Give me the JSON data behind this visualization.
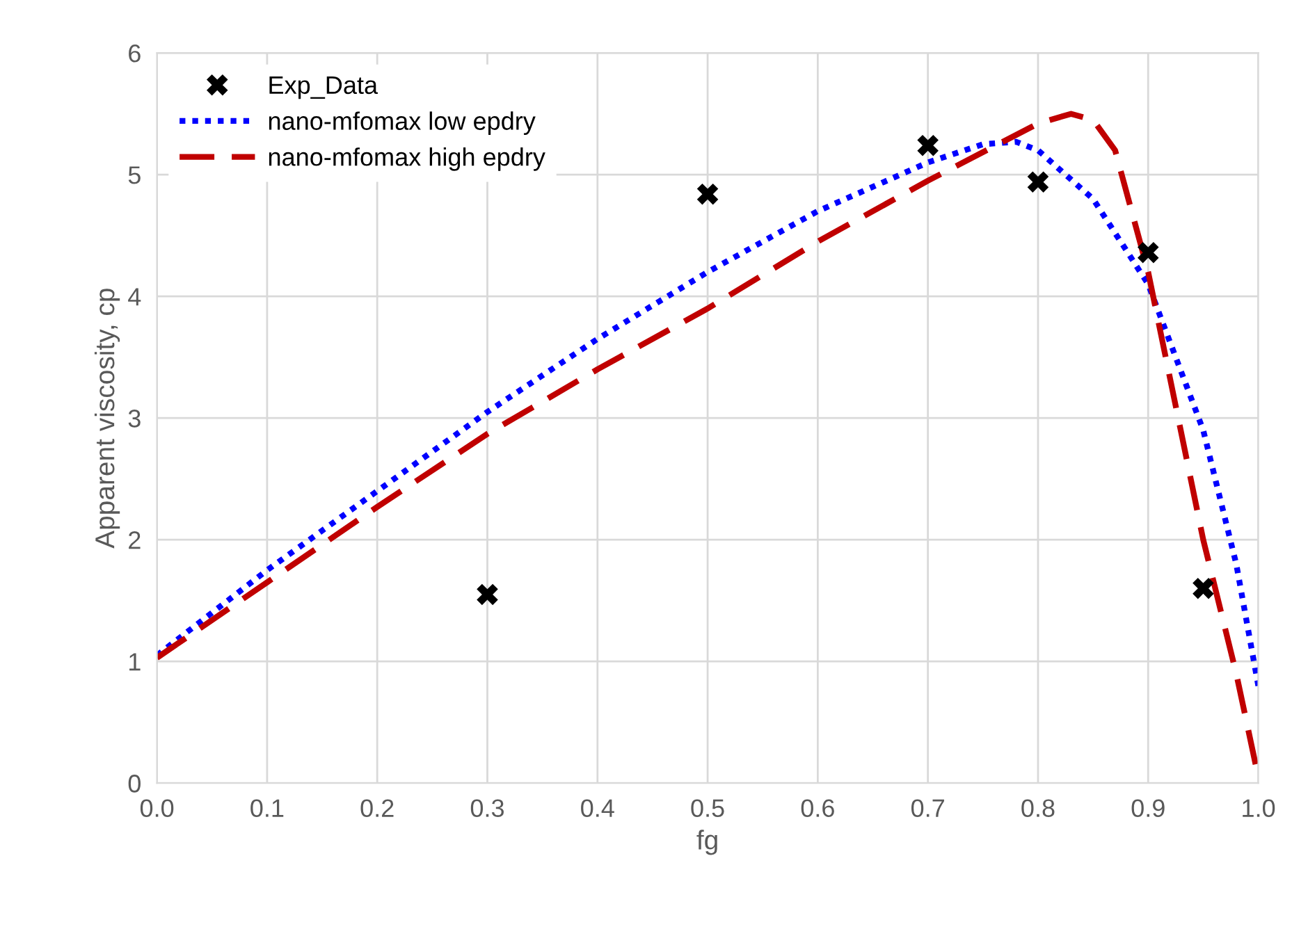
{
  "chart_data": {
    "type": "line",
    "xlabel": "fg",
    "ylabel": "Apparent viscosity, cp",
    "xlim": [
      0,
      1
    ],
    "ylim": [
      0,
      6
    ],
    "xticks": [
      {
        "value": 0,
        "label": "0.0"
      },
      0.1,
      0.2,
      0.3,
      0.4,
      0.5,
      0.6,
      0.7,
      0.8,
      0.9,
      {
        "value": 1,
        "label": "1.0"
      }
    ],
    "yticks": [
      0,
      1,
      2,
      3,
      4,
      5,
      6
    ],
    "grid": true,
    "legend": "top left",
    "series": [
      {
        "name": "Exp_Data",
        "type": "scatter",
        "marker": "cross",
        "color": "#000000",
        "x": [
          0.3,
          0.5,
          0.7,
          0.8,
          0.9,
          0.95
        ],
        "values": [
          1.55,
          4.84,
          5.24,
          4.94,
          4.36,
          1.6
        ]
      },
      {
        "name": "nano-mfomax low epdry",
        "line_style": "dotted",
        "color": "#0000ff",
        "x": [
          0,
          0.1,
          0.2,
          0.3,
          0.4,
          0.5,
          0.6,
          0.7,
          0.75,
          0.78,
          0.8,
          0.85,
          0.9,
          0.95,
          0.98,
          1.0
        ],
        "values": [
          1.05,
          1.75,
          2.4,
          3.05,
          3.65,
          4.2,
          4.7,
          5.1,
          5.25,
          5.27,
          5.2,
          4.8,
          4.1,
          2.9,
          1.8,
          0.8
        ]
      },
      {
        "name": "nano-mfomax high epdry",
        "line_style": "dashed",
        "color": "#c00000",
        "x": [
          0,
          0.1,
          0.2,
          0.3,
          0.4,
          0.5,
          0.6,
          0.7,
          0.8,
          0.83,
          0.85,
          0.87,
          0.9,
          0.95,
          0.98,
          1.0
        ],
        "values": [
          1.03,
          1.65,
          2.27,
          2.87,
          3.4,
          3.9,
          4.45,
          4.95,
          5.42,
          5.5,
          5.45,
          5.2,
          4.2,
          2.0,
          0.9,
          0.05
        ]
      }
    ]
  }
}
